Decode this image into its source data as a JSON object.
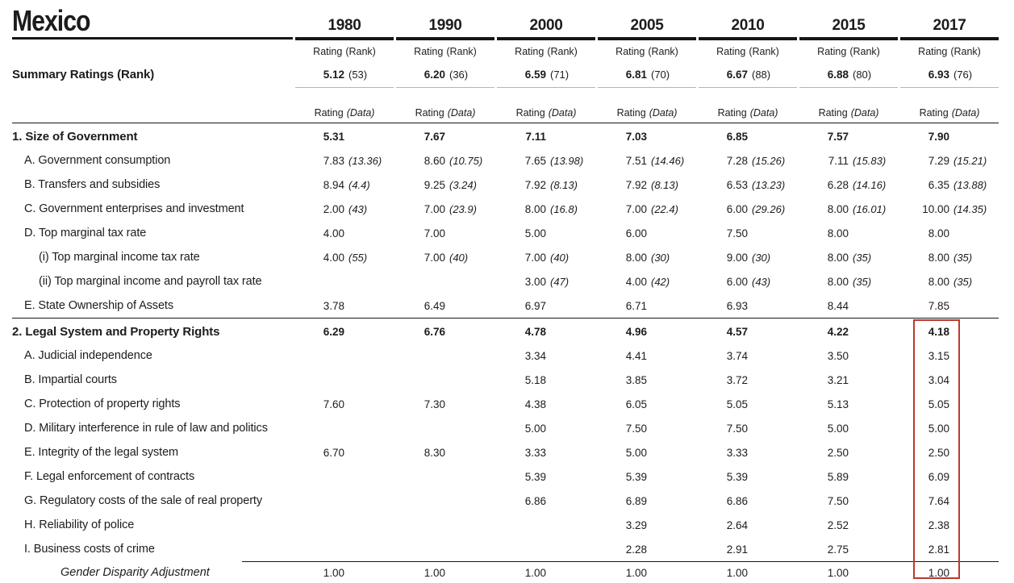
{
  "title": "Mexico",
  "years": [
    "1980",
    "1990",
    "2000",
    "2005",
    "2010",
    "2015",
    "2017"
  ],
  "column_headers": {
    "rating_rank": {
      "rating": "Rating",
      "paren": "(Rank)"
    },
    "rating_data": {
      "rating": "Rating",
      "paren": "(Data)"
    }
  },
  "summary": {
    "label": "Summary Ratings (Rank)",
    "values": [
      {
        "rating": "5.12",
        "paren": "(53)"
      },
      {
        "rating": "6.20",
        "paren": "(36)"
      },
      {
        "rating": "6.59",
        "paren": "(71)"
      },
      {
        "rating": "6.81",
        "paren": "(70)"
      },
      {
        "rating": "6.67",
        "paren": "(88)"
      },
      {
        "rating": "6.88",
        "paren": "(80)"
      },
      {
        "rating": "6.93",
        "paren": "(76)"
      }
    ]
  },
  "sections": [
    {
      "rows": [
        {
          "type": "section",
          "label": "1. Size of Government",
          "cells": [
            {
              "rating": "5.31"
            },
            {
              "rating": "7.67"
            },
            {
              "rating": "7.11"
            },
            {
              "rating": "7.03"
            },
            {
              "rating": "6.85"
            },
            {
              "rating": "7.57"
            },
            {
              "rating": "7.90"
            }
          ]
        },
        {
          "type": "sub",
          "label": "A. Government consumption",
          "cells": [
            {
              "rating": "7.83",
              "paren": "(13.36)"
            },
            {
              "rating": "8.60",
              "paren": "(10.75)"
            },
            {
              "rating": "7.65",
              "paren": "(13.98)"
            },
            {
              "rating": "7.51",
              "paren": "(14.46)"
            },
            {
              "rating": "7.28",
              "paren": "(15.26)"
            },
            {
              "rating": "7.11",
              "paren": "(15.83)"
            },
            {
              "rating": "7.29",
              "paren": "(15.21)"
            }
          ]
        },
        {
          "type": "sub",
          "label": "B. Transfers and subsidies",
          "cells": [
            {
              "rating": "8.94",
              "paren": "(4.4)"
            },
            {
              "rating": "9.25",
              "paren": "(3.24)"
            },
            {
              "rating": "7.92",
              "paren": "(8.13)"
            },
            {
              "rating": "7.92",
              "paren": "(8.13)"
            },
            {
              "rating": "6.53",
              "paren": "(13.23)"
            },
            {
              "rating": "6.28",
              "paren": "(14.16)"
            },
            {
              "rating": "6.35",
              "paren": "(13.88)"
            }
          ]
        },
        {
          "type": "sub",
          "label": "C. Government enterprises and investment",
          "cells": [
            {
              "rating": "2.00",
              "paren": "(43)"
            },
            {
              "rating": "7.00",
              "paren": "(23.9)"
            },
            {
              "rating": "8.00",
              "paren": "(16.8)"
            },
            {
              "rating": "7.00",
              "paren": "(22.4)"
            },
            {
              "rating": "6.00",
              "paren": "(29.26)"
            },
            {
              "rating": "8.00",
              "paren": "(16.01)"
            },
            {
              "rating": "10.00",
              "paren": "(14.35)"
            }
          ]
        },
        {
          "type": "sub",
          "label": "D. Top marginal tax rate",
          "cells": [
            {
              "rating": "4.00"
            },
            {
              "rating": "7.00"
            },
            {
              "rating": "5.00"
            },
            {
              "rating": "6.00"
            },
            {
              "rating": "7.50"
            },
            {
              "rating": "8.00"
            },
            {
              "rating": "8.00"
            }
          ]
        },
        {
          "type": "subsub",
          "label": "(i) Top marginal income tax rate",
          "cells": [
            {
              "rating": "4.00",
              "paren": "(55)"
            },
            {
              "rating": "7.00",
              "paren": "(40)"
            },
            {
              "rating": "7.00",
              "paren": "(40)"
            },
            {
              "rating": "8.00",
              "paren": "(30)"
            },
            {
              "rating": "9.00",
              "paren": "(30)"
            },
            {
              "rating": "8.00",
              "paren": "(35)"
            },
            {
              "rating": "8.00",
              "paren": "(35)"
            }
          ]
        },
        {
          "type": "subsub",
          "label": "(ii) Top marginal income and payroll tax rate",
          "cells": [
            {},
            {},
            {
              "rating": "3.00",
              "paren": "(47)"
            },
            {
              "rating": "4.00",
              "paren": "(42)"
            },
            {
              "rating": "6.00",
              "paren": "(43)"
            },
            {
              "rating": "8.00",
              "paren": "(35)"
            },
            {
              "rating": "8.00",
              "paren": "(35)"
            }
          ]
        },
        {
          "type": "sub",
          "label": "E. State Ownership of Assets",
          "cells": [
            {
              "rating": "3.78"
            },
            {
              "rating": "6.49"
            },
            {
              "rating": "6.97"
            },
            {
              "rating": "6.71"
            },
            {
              "rating": "6.93"
            },
            {
              "rating": "8.44"
            },
            {
              "rating": "7.85"
            }
          ]
        }
      ]
    },
    {
      "rows": [
        {
          "type": "section",
          "label": "2. Legal System and Property Rights",
          "cells": [
            {
              "rating": "6.29"
            },
            {
              "rating": "6.76"
            },
            {
              "rating": "4.78"
            },
            {
              "rating": "4.96"
            },
            {
              "rating": "4.57"
            },
            {
              "rating": "4.22"
            },
            {
              "rating": "4.18"
            }
          ]
        },
        {
          "type": "sub",
          "label": "A. Judicial independence",
          "cells": [
            {},
            {},
            {
              "rating": "3.34"
            },
            {
              "rating": "4.41"
            },
            {
              "rating": "3.74"
            },
            {
              "rating": "3.50"
            },
            {
              "rating": "3.15"
            }
          ]
        },
        {
          "type": "sub",
          "label": "B. Impartial courts",
          "cells": [
            {},
            {},
            {
              "rating": "5.18"
            },
            {
              "rating": "3.85"
            },
            {
              "rating": "3.72"
            },
            {
              "rating": "3.21"
            },
            {
              "rating": "3.04"
            }
          ]
        },
        {
          "type": "sub",
          "label": "C. Protection of property rights",
          "cells": [
            {
              "rating": "7.60"
            },
            {
              "rating": "7.30"
            },
            {
              "rating": "4.38"
            },
            {
              "rating": "6.05"
            },
            {
              "rating": "5.05"
            },
            {
              "rating": "5.13"
            },
            {
              "rating": "5.05"
            }
          ]
        },
        {
          "type": "sub",
          "label": "D. Military interference in rule of law and politics",
          "cells": [
            {},
            {},
            {
              "rating": "5.00"
            },
            {
              "rating": "7.50"
            },
            {
              "rating": "7.50"
            },
            {
              "rating": "5.00"
            },
            {
              "rating": "5.00"
            }
          ]
        },
        {
          "type": "sub",
          "label": "E. Integrity of the legal system",
          "cells": [
            {
              "rating": "6.70"
            },
            {
              "rating": "8.30"
            },
            {
              "rating": "3.33"
            },
            {
              "rating": "5.00"
            },
            {
              "rating": "3.33"
            },
            {
              "rating": "2.50"
            },
            {
              "rating": "2.50"
            }
          ]
        },
        {
          "type": "sub",
          "label": "F. Legal enforcement of contracts",
          "cells": [
            {},
            {},
            {
              "rating": "5.39"
            },
            {
              "rating": "5.39"
            },
            {
              "rating": "5.39"
            },
            {
              "rating": "5.89"
            },
            {
              "rating": "6.09"
            }
          ]
        },
        {
          "type": "sub",
          "label": "G. Regulatory costs of the sale of real property",
          "cells": [
            {},
            {},
            {
              "rating": "6.86"
            },
            {
              "rating": "6.89"
            },
            {
              "rating": "6.86"
            },
            {
              "rating": "7.50"
            },
            {
              "rating": "7.64"
            }
          ]
        },
        {
          "type": "sub",
          "label": "H. Reliability of police",
          "cells": [
            {},
            {},
            {},
            {
              "rating": "3.29"
            },
            {
              "rating": "2.64"
            },
            {
              "rating": "2.52"
            },
            {
              "rating": "2.38"
            }
          ]
        },
        {
          "type": "sub",
          "label": "I. Business costs of crime",
          "cells": [
            {},
            {},
            {},
            {
              "rating": "2.28"
            },
            {
              "rating": "2.91"
            },
            {
              "rating": "2.75"
            },
            {
              "rating": "2.81"
            }
          ]
        }
      ]
    }
  ],
  "gender_row": {
    "label": "Gender Disparity Adjustment",
    "values": [
      "1.00",
      "1.00",
      "1.00",
      "1.00",
      "1.00",
      "1.00",
      "1.00"
    ]
  },
  "highlight": {
    "column": "2017",
    "color": "#bf372b"
  }
}
